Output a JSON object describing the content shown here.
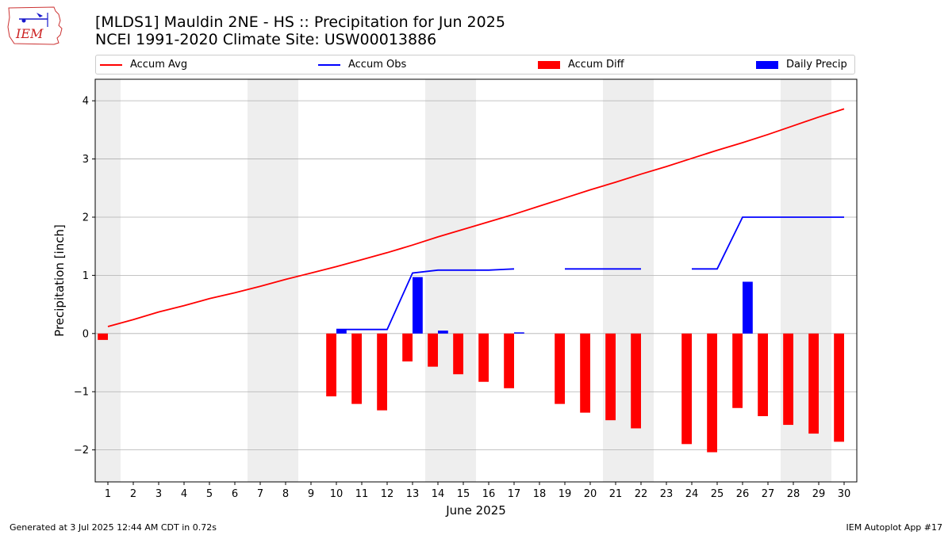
{
  "title_line1": "[MLDS1] Mauldin 2NE - HS :: Precipitation for Jun 2025",
  "title_line2": "NCEI 1991-2020 Climate Site: USW00013886",
  "logo_text": "IEM",
  "footer_left": "Generated at 3 Jul 2025 12:44 AM CDT in 0.72s",
  "footer_right": "IEM Autoplot App #17",
  "colors": {
    "accum_avg": "#ff0000",
    "accum_obs": "#0000ff",
    "accum_diff": "#ff0000",
    "daily_precip": "#0000ff",
    "weekend_shade": "#eeeeee",
    "grid": "#b0b0b0"
  },
  "legend": [
    {
      "label": "Accum Avg",
      "kind": "line",
      "color": "#ff0000"
    },
    {
      "label": "Accum Obs",
      "kind": "line",
      "color": "#0000ff"
    },
    {
      "label": "Accum Diff",
      "kind": "box",
      "color": "#ff0000"
    },
    {
      "label": "Daily Precip",
      "kind": "box",
      "color": "#0000ff"
    }
  ],
  "chart_data": {
    "type": "bar",
    "xlabel": "June 2025",
    "ylabel": "Precipitation [inch]",
    "xlim": [
      0.5,
      30.5
    ],
    "ylim": [
      -2.55,
      4.37
    ],
    "yticks": [
      -2,
      -1,
      0,
      1,
      2,
      3,
      4
    ],
    "ytick_labels": [
      "−2",
      "−1",
      "0",
      "1",
      "2",
      "3",
      "4"
    ],
    "x": [
      1,
      2,
      3,
      4,
      5,
      6,
      7,
      8,
      9,
      10,
      11,
      12,
      13,
      14,
      15,
      16,
      17,
      18,
      19,
      20,
      21,
      22,
      23,
      24,
      25,
      26,
      27,
      28,
      29,
      30
    ],
    "weekend_days": [
      1,
      7,
      8,
      14,
      15,
      21,
      22,
      28,
      29
    ],
    "grid": "horizontal",
    "legend_position": "top",
    "series": [
      {
        "name": "Accum Avg",
        "kind": "line",
        "color": "#ff0000",
        "values": [
          0.12,
          0.24,
          0.37,
          0.48,
          0.6,
          0.7,
          0.81,
          0.93,
          1.04,
          1.15,
          1.27,
          1.39,
          1.52,
          1.66,
          1.79,
          1.92,
          2.05,
          2.19,
          2.33,
          2.47,
          2.6,
          2.74,
          2.87,
          3.01,
          3.15,
          3.28,
          3.42,
          3.57,
          3.72,
          3.86
        ]
      },
      {
        "name": "Accum Obs",
        "kind": "line",
        "color": "#0000ff",
        "values": [
          null,
          null,
          null,
          null,
          null,
          null,
          null,
          null,
          null,
          0.07,
          0.07,
          0.07,
          1.04,
          1.09,
          1.09,
          1.09,
          1.11,
          null,
          1.11,
          1.11,
          1.11,
          1.11,
          null,
          1.11,
          1.11,
          2.0,
          2.0,
          2.0,
          2.0,
          2.0
        ]
      },
      {
        "name": "Accum Diff",
        "kind": "bar",
        "color": "#ff0000",
        "values": [
          -0.11,
          null,
          null,
          null,
          null,
          null,
          null,
          null,
          null,
          -1.08,
          -1.21,
          -1.32,
          -0.48,
          -0.57,
          -0.7,
          -0.83,
          -0.94,
          null,
          -1.21,
          -1.36,
          -1.49,
          -1.63,
          null,
          -1.9,
          -2.04,
          -1.28,
          -1.42,
          -1.57,
          -1.72,
          -1.86
        ]
      },
      {
        "name": "Daily Precip",
        "kind": "bar",
        "color": "#0000ff",
        "values": [
          0,
          0,
          0,
          0,
          0,
          0,
          0,
          0,
          0,
          0.07,
          0,
          0,
          0.97,
          0.05,
          0,
          0,
          0.02,
          0,
          0,
          0,
          0,
          0,
          0,
          0,
          0,
          0.89,
          0,
          0,
          0,
          0
        ]
      }
    ]
  }
}
